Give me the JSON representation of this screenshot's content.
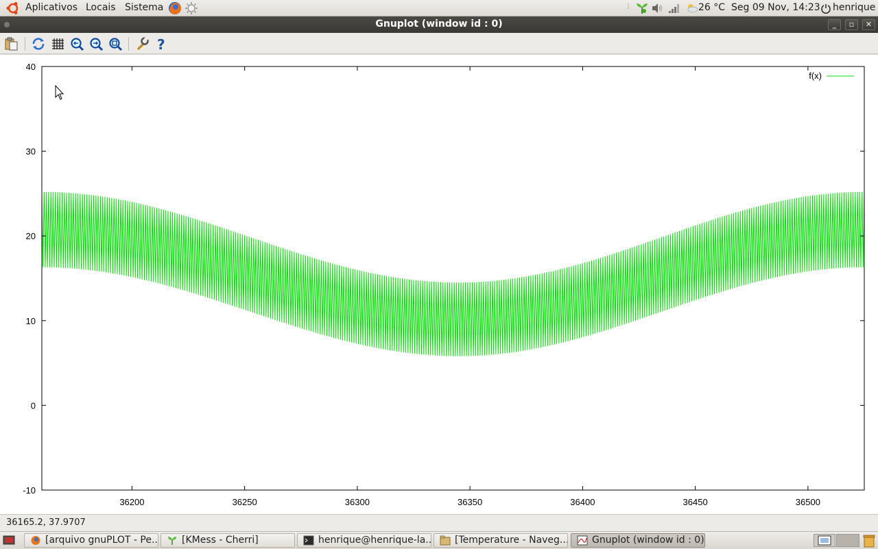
{
  "top_panel": {
    "menus": [
      "Aplicativos",
      "Locais",
      "Sistema"
    ],
    "temperature": "26 °C",
    "datetime": "Seg 09 Nov, 14:23",
    "user": "henrique"
  },
  "window": {
    "title": "Gnuplot (window id : 0)"
  },
  "toolbar": {
    "buttons": [
      "copy-to-clipboard",
      "replot",
      "grid",
      "zoom-previous",
      "zoom-next",
      "unzoom",
      "options",
      "help"
    ]
  },
  "statusbar": {
    "coords": "36165.2,  37.9707"
  },
  "taskbar": {
    "tasks": [
      "[arquivo gnuPLOT - Pe...",
      "[KMess - Cherri]",
      "henrique@henrique-la...",
      "[Temperature - Naveg...",
      "Gnuplot (window id : 0)"
    ]
  },
  "chart_data": {
    "type": "line",
    "title": "",
    "xlabel": "",
    "ylabel": "",
    "xlim": [
      36160,
      36525
    ],
    "ylim": [
      -10,
      40
    ],
    "xticks": [
      36200,
      36250,
      36300,
      36350,
      36400,
      36450,
      36500
    ],
    "yticks": [
      -10,
      0,
      10,
      20,
      30,
      40
    ],
    "grid": false,
    "legend": "top-right",
    "series": [
      {
        "name": "f(x)",
        "color": "#00dd00",
        "description_values": {
          "envelope_max": [
            [
              36160,
              25.2
            ],
            [
              36345,
              14.5
            ],
            [
              36525,
              25.2
            ]
          ],
          "envelope_min": [
            [
              36160,
              16.3
            ],
            [
              36345,
              5.8
            ],
            [
              36525,
              16.3
            ]
          ],
          "oscillation_period": 1
        }
      }
    ]
  }
}
